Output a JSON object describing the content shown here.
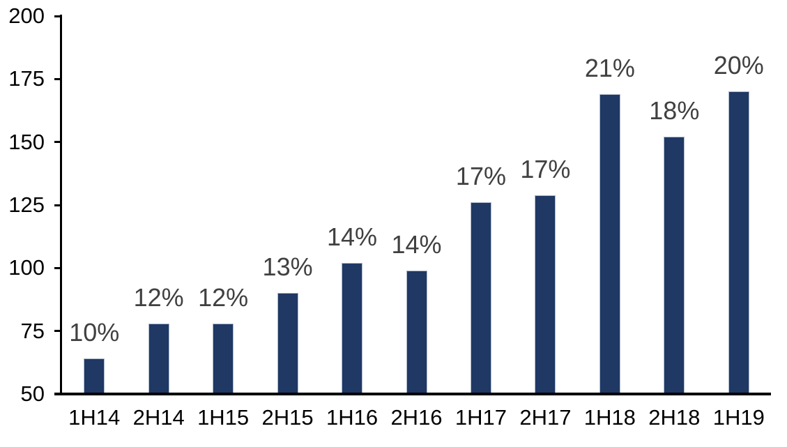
{
  "chart_data": {
    "type": "bar",
    "title": "",
    "xlabel": "",
    "ylabel": "",
    "categories": [
      "1H14",
      "2H14",
      "1H15",
      "2H15",
      "1H16",
      "2H16",
      "1H17",
      "2H17",
      "1H18",
      "2H18",
      "1H19"
    ],
    "values": [
      64,
      78,
      78,
      90,
      102,
      99,
      126,
      129,
      169,
      152,
      170
    ],
    "bar_labels": [
      "10%",
      "12%",
      "12%",
      "13%",
      "14%",
      "14%",
      "17%",
      "17%",
      "21%",
      "18%",
      "20%"
    ],
    "ylim": [
      50,
      200
    ],
    "yticks": [
      50,
      75,
      100,
      125,
      150,
      175,
      200
    ],
    "grid": false,
    "legend": "none",
    "colors": {
      "bar_fill": "#1f3864",
      "bar_border": "#aeb9ca",
      "data_label": "#404040",
      "axis_line": "#000000",
      "axis_text": "#000000",
      "background": "#ffffff"
    }
  }
}
